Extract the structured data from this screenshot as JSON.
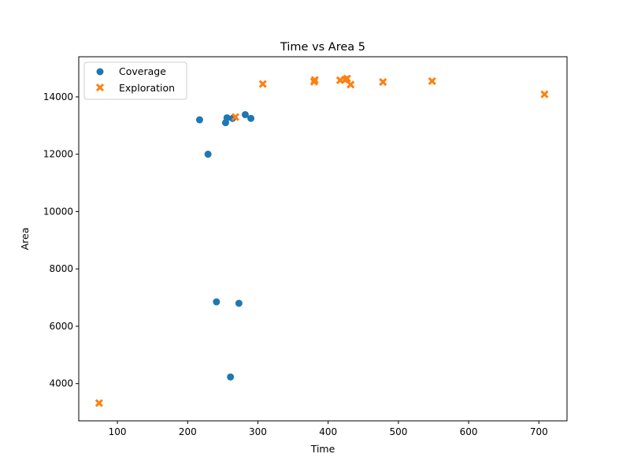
{
  "chart_data": {
    "type": "scatter",
    "title": "Time vs Area 5",
    "xlabel": "Time",
    "ylabel": "Area",
    "xlim": [
      45,
      740
    ],
    "ylim": [
      2700,
      15400
    ],
    "xticks": [
      100,
      200,
      300,
      400,
      500,
      600,
      700
    ],
    "yticks": [
      4000,
      6000,
      8000,
      10000,
      12000,
      14000
    ],
    "grid": false,
    "legend_position": "top-left",
    "series": [
      {
        "name": "Coverage",
        "marker": "circle",
        "color": "#1f77b4",
        "points": [
          {
            "x": 217,
            "y": 13200
          },
          {
            "x": 229,
            "y": 12000
          },
          {
            "x": 241,
            "y": 6850
          },
          {
            "x": 254,
            "y": 13100
          },
          {
            "x": 256,
            "y": 13270
          },
          {
            "x": 261,
            "y": 4230
          },
          {
            "x": 264,
            "y": 13250
          },
          {
            "x": 273,
            "y": 6800
          },
          {
            "x": 282,
            "y": 13380
          },
          {
            "x": 290,
            "y": 13250
          }
        ]
      },
      {
        "name": "Exploration",
        "marker": "x",
        "color": "#ff7f0e",
        "points": [
          {
            "x": 74,
            "y": 3320
          },
          {
            "x": 268,
            "y": 13300
          },
          {
            "x": 307,
            "y": 14450
          },
          {
            "x": 380,
            "y": 14530
          },
          {
            "x": 381,
            "y": 14590
          },
          {
            "x": 417,
            "y": 14580
          },
          {
            "x": 424,
            "y": 14600
          },
          {
            "x": 427,
            "y": 14640
          },
          {
            "x": 432,
            "y": 14430
          },
          {
            "x": 478,
            "y": 14520
          },
          {
            "x": 548,
            "y": 14550
          },
          {
            "x": 708,
            "y": 14090
          }
        ]
      }
    ]
  }
}
